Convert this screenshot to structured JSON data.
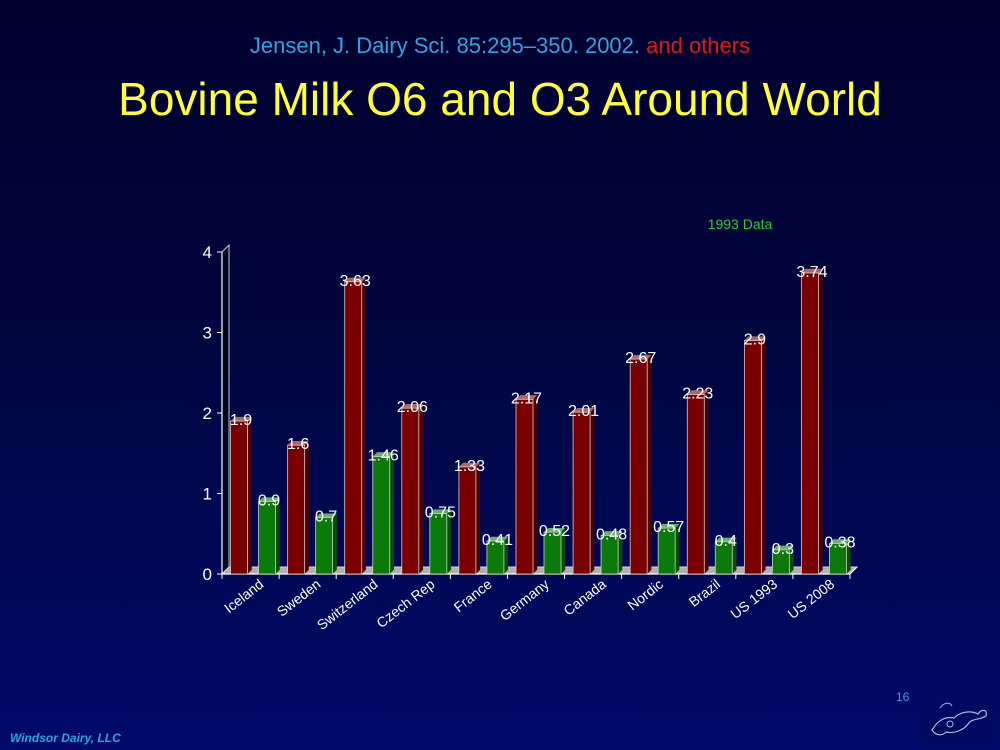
{
  "header": {
    "citation": "Jensen, J. Dairy Sci. 85:295–350. 2002.",
    "citation_extra": "and others",
    "title": "Bovine Milk O6 and O3 Around World"
  },
  "footer": {
    "company": "Windsor Dairy, LLC",
    "page_number": "16"
  },
  "colors": {
    "omega6": "#7a0000",
    "omega3": "#0b7a0b",
    "title": "#ffff33",
    "citation": "#2aa6e0",
    "citation_extra": "#e01a12",
    "annotation": "#2ecc2e"
  },
  "chart_data": {
    "type": "bar",
    "title": "",
    "xlabel": "",
    "ylabel": "",
    "ylim": [
      0,
      4
    ],
    "yticks": [
      0,
      1,
      2,
      3,
      4
    ],
    "legend": "none",
    "grid": false,
    "annotation": "1993 Data",
    "categories": [
      "Iceland",
      "Sweden",
      "Switzerland",
      "Czech Rep",
      "France",
      "Germany",
      "Canada",
      "Nordic",
      "Brazil",
      "US 1993",
      "US 2008"
    ],
    "series": [
      {
        "color": "#7a0000",
        "values": [
          1.9,
          1.6,
          3.63,
          2.06,
          1.33,
          2.17,
          2.01,
          2.67,
          2.23,
          2.9,
          3.74
        ]
      },
      {
        "color": "#0b7a0b",
        "values": [
          0.9,
          0.7,
          1.46,
          0.75,
          0.41,
          0.52,
          0.48,
          0.57,
          0.4,
          0.3,
          0.38
        ]
      }
    ]
  }
}
